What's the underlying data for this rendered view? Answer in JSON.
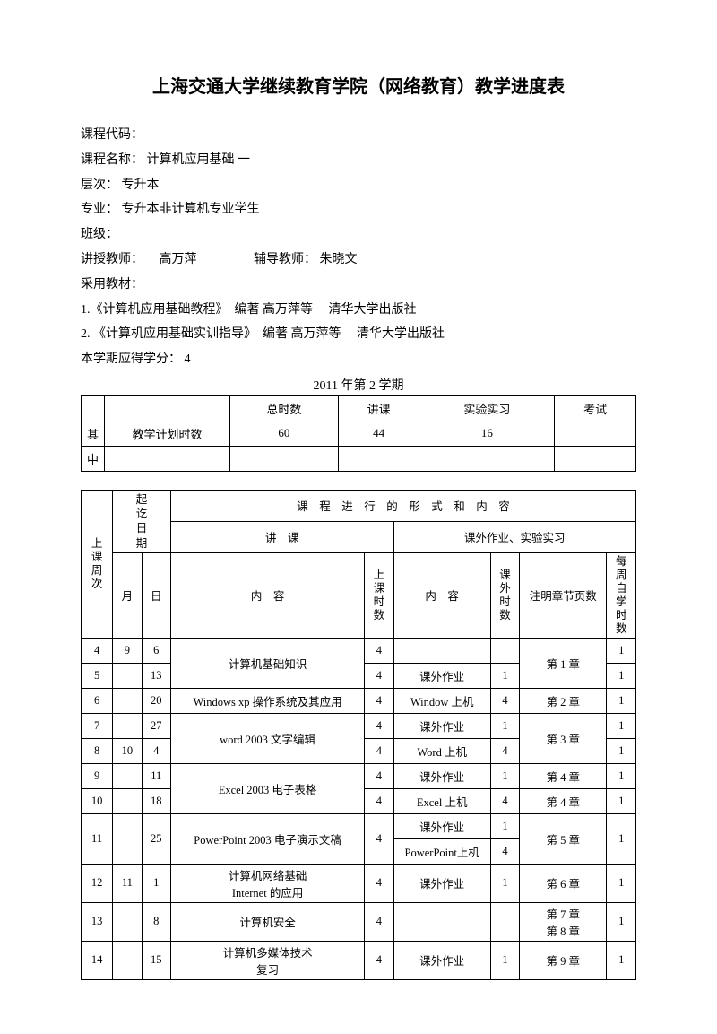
{
  "title": "上海交通大学继续教育学院（网络教育）教学进度表",
  "meta": {
    "course_code_label": "课程代码：",
    "course_name_label": "课程名称：",
    "course_name": "计算机应用基础 一",
    "level_label": "层次：",
    "level": "专升本",
    "major_label": "专业：",
    "major": "专升本非计算机专业学生",
    "class_label": "班级：",
    "teacher_label": "讲授教师：",
    "teacher": "　高万萍",
    "tutor_label": "辅导教师：",
    "tutor": "朱晓文",
    "textbook_label": "采用教材：",
    "textbook1": "1.《计算机应用基础教程》　编著 高万萍等　 清华大学出版社",
    "textbook2": "2. 《计算机应用基础实训指导》　编著 高万萍等　 清华大学出版社",
    "credit_label": "本学期应得学分：",
    "credit": "4",
    "term": "2011 年第 2 学期"
  },
  "summary": {
    "header": {
      "c1": "",
      "c2": "",
      "total": "总时数",
      "lecture": "讲课",
      "lab": "实验实习",
      "exam": "考试"
    },
    "row1": {
      "c1": "其",
      "c2": "教学计划时数",
      "total": "60",
      "lecture": "44",
      "lab": "16",
      "exam": ""
    },
    "row2": {
      "c1": "中",
      "c2": "",
      "total": "",
      "lecture": "",
      "lab": "",
      "exam": ""
    }
  },
  "schedule": {
    "header": {
      "date": "起讫日期",
      "form": "课　程　进　行　的　形　式　和　内　容",
      "week": "上课周次",
      "month": "月",
      "day": "日",
      "lecture": "讲　课",
      "homework": "课外作业、实验实习",
      "content": "内　容",
      "lec_hours": "上课时数",
      "hw_content": "内　容",
      "hw_hours": "课外时数",
      "chapter": "注明章节页数",
      "self": "每周自学时数"
    },
    "rows": [
      {
        "week": "4",
        "month": "9",
        "day": "6",
        "content": "计算机基础知识",
        "rowspan": 2,
        "lec_h": "4",
        "hw": "",
        "hw_h": "",
        "chap": "第 1 章",
        "chap_rs": 2,
        "self": "1"
      },
      {
        "week": "5",
        "month": "",
        "day": "13",
        "lec_h": "4",
        "hw": "课外作业",
        "hw_h": "1",
        "self": "1"
      },
      {
        "week": "6",
        "month": "",
        "day": "20",
        "content": "Windows xp 操作系统及其应用",
        "rowspan": 1,
        "lec_h": "4",
        "hw": "Window 上机",
        "hw_h": "4",
        "chap": "第 2 章",
        "chap_rs": 1,
        "self": "1"
      },
      {
        "week": "7",
        "month": "",
        "day": "27",
        "content": "word 2003 文字编辑",
        "rowspan": 2,
        "lec_h": "4",
        "hw": "课外作业",
        "hw_h": "1",
        "chap": "第 3 章",
        "chap_rs": 2,
        "self": "1"
      },
      {
        "week": "8",
        "month": "10",
        "day": "4",
        "lec_h": "4",
        "hw": "Word 上机",
        "hw_h": "4",
        "self": "1"
      },
      {
        "week": "9",
        "month": "",
        "day": "11",
        "content": "Excel 2003 电子表格",
        "rowspan": 2,
        "lec_h": "4",
        "hw": "课外作业",
        "hw_h": "1",
        "chap": "第 4 章",
        "chap_rs": 1,
        "self": "1"
      },
      {
        "week": "10",
        "month": "",
        "day": "18",
        "lec_h": "4",
        "hw": "Excel  上机",
        "hw_h": "4",
        "chap": "第 4 章",
        "chap_rs": 1,
        "self": "1"
      },
      {
        "week": "11",
        "month": "",
        "day": "25",
        "content": "PowerPoint 2003 电子演示文稿",
        "rowspan": 1,
        "lec_h": "4",
        "hw_split": true,
        "hw1": "课外作业",
        "hw1_h": "1",
        "hw2": "PowerPoint上机",
        "hw2_h": "4",
        "chap": "第 5 章",
        "chap_rs": 1,
        "self": "1"
      },
      {
        "week": "12",
        "month": "11",
        "day": "1",
        "content": "计算机网络基础\nInternet 的应用",
        "rowspan": 1,
        "lec_h": "4",
        "hw": "课外作业",
        "hw_h": "1",
        "chap": "第 6 章",
        "chap_rs": 1,
        "self": "1"
      },
      {
        "week": "13",
        "month": "",
        "day": "8",
        "content": "计算机安全",
        "rowspan": 1,
        "lec_h": "4",
        "hw": "",
        "hw_h": "",
        "chap": "第 7 章\n第 8 章",
        "chap_rs": 1,
        "self": "1"
      },
      {
        "week": "14",
        "month": "",
        "day": "15",
        "content": "计算机多媒体技术\n复习",
        "rowspan": 1,
        "lec_h": "4",
        "hw": "课外作业",
        "hw_h": "1",
        "chap": "第 9 章",
        "chap_rs": 1,
        "self": "1"
      }
    ]
  }
}
